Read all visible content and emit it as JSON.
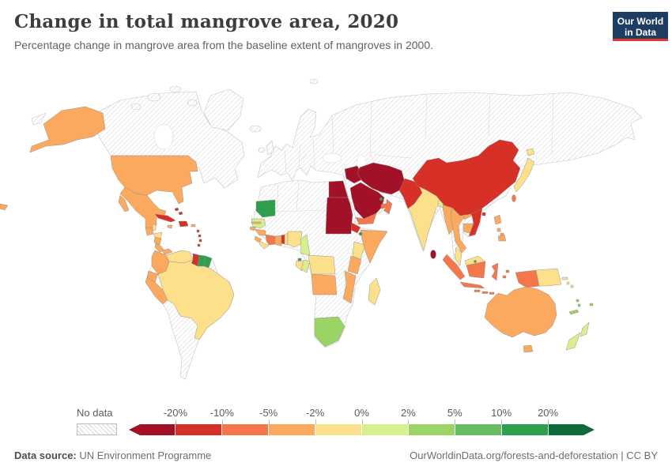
{
  "header": {
    "title": "Change in total mangrove area, 2020",
    "subtitle": "Percentage change in mangrove area from the baseline extent of mangroves in 2000."
  },
  "logo": {
    "line1": "Our World",
    "line2": "in Data",
    "bg_color": "#1d3d63",
    "accent_color": "#e0342c"
  },
  "legend": {
    "nodata_label": "No data",
    "tick_labels": [
      "-20%",
      "-10%",
      "-5%",
      "-2%",
      "0%",
      "2%",
      "5%",
      "10%",
      "20%"
    ],
    "bucket_colors": [
      "#A21127",
      "#D73027",
      "#F4764A",
      "#FBA95F",
      "#FCE08B",
      "#D8EE8F",
      "#9BD364",
      "#66BD63",
      "#2F9E4D",
      "#0C6B39"
    ]
  },
  "footer": {
    "source_label": "Data source:",
    "source_value": "UN Environment Programme",
    "right_text": "OurWorldinData.org/forests-and-deforestation | CC BY"
  },
  "chart_data": {
    "type": "heatmap",
    "subtype": "world-choropleth-map",
    "title": "Change in total mangrove area, 2020",
    "unit": "%",
    "color_scale": {
      "tick_values": [
        -20,
        -10,
        -5,
        -2,
        0,
        2,
        5,
        10,
        20
      ],
      "bucket_colors": [
        "#A21127",
        "#D73027",
        "#F4764A",
        "#FBA95F",
        "#FCE08B",
        "#D8EE8F",
        "#9BD364",
        "#66BD63",
        "#2F9E4D",
        "#0C6B39"
      ],
      "nodata_pattern": "gray-diagonal-hatch"
    },
    "countries": [
      {
        "id": "united-states",
        "name": "United States",
        "bucket": "-5% to -2%",
        "color": "#FBA95F"
      },
      {
        "id": "mexico",
        "name": "Mexico",
        "bucket": "-5% to -2%",
        "color": "#FBA95F"
      },
      {
        "id": "guatemala",
        "name": "Guatemala",
        "bucket": "-5% to -2%",
        "color": "#FBA95F"
      },
      {
        "id": "belize",
        "name": "Belize",
        "bucket": "-2% to 0%",
        "color": "#FCE08B"
      },
      {
        "id": "honduras",
        "name": "Honduras",
        "bucket": "-2% to 0%",
        "color": "#FCE08B"
      },
      {
        "id": "nicaragua",
        "name": "Nicaragua",
        "bucket": "-5% to -2%",
        "color": "#FBA95F"
      },
      {
        "id": "costa-rica",
        "name": "Costa Rica",
        "bucket": "-5% to -2%",
        "color": "#FBA95F"
      },
      {
        "id": "panama",
        "name": "Panama",
        "bucket": "-5% to -2%",
        "color": "#FBA95F"
      },
      {
        "id": "cuba",
        "name": "Cuba",
        "bucket": "-20% to -10%",
        "color": "#D73027"
      },
      {
        "id": "jamaica",
        "name": "Jamaica",
        "bucket": "-5% to -2%",
        "color": "#FBA95F"
      },
      {
        "id": "hispaniola",
        "name": "Haiti / Dominican Republic",
        "bucket": "-20% to -10%",
        "color": "#D73027"
      },
      {
        "id": "puerto-rico",
        "name": "Puerto Rico",
        "bucket": "-5% to -2%",
        "color": "#FBA95F"
      },
      {
        "id": "bahamas",
        "name": "Bahamas",
        "bucket": "-20% to -10%",
        "color": "#D73027"
      },
      {
        "id": "lesser-antilles",
        "name": "Lesser Antilles",
        "bucket": "-20% to -10%",
        "color": "#D73027"
      },
      {
        "id": "colombia",
        "name": "Colombia",
        "bucket": "-5% to -2%",
        "color": "#FBA95F"
      },
      {
        "id": "venezuela",
        "name": "Venezuela",
        "bucket": "-2% to 0%",
        "color": "#FCE08B"
      },
      {
        "id": "guyana",
        "name": "Guyana",
        "bucket": "-20% to -10%",
        "color": "#D73027"
      },
      {
        "id": "suriname",
        "name": "Suriname",
        "bucket": "10% to 20%",
        "color": "#2F9E4D"
      },
      {
        "id": "french-guiana",
        "name": "French Guiana",
        "bucket": "10% to 20%",
        "color": "#2F9E4D"
      },
      {
        "id": "ecuador",
        "name": "Ecuador",
        "bucket": "-5% to -2%",
        "color": "#FBA95F"
      },
      {
        "id": "peru",
        "name": "Peru",
        "bucket": "-5% to -2%",
        "color": "#FBA95F"
      },
      {
        "id": "brazil",
        "name": "Brazil",
        "bucket": "-2% to 0%",
        "color": "#FCE08B"
      },
      {
        "id": "mauritania",
        "name": "Mauritania",
        "bucket": "10% to 20%",
        "color": "#2F9E4D"
      },
      {
        "id": "senegal",
        "name": "Senegal",
        "bucket": "0% to 2%",
        "color": "#D8EE8F"
      },
      {
        "id": "gambia",
        "name": "Gambia",
        "bucket": "-5% to -2%",
        "color": "#FBA95F"
      },
      {
        "id": "guinea-bissau",
        "name": "Guinea-Bissau",
        "bucket": "-5% to -2%",
        "color": "#FBA95F"
      },
      {
        "id": "guinea",
        "name": "Guinea",
        "bucket": "-5% to -2%",
        "color": "#FBA95F"
      },
      {
        "id": "sierra-leone",
        "name": "Sierra Leone",
        "bucket": "-5% to -2%",
        "color": "#FBA95F"
      },
      {
        "id": "liberia",
        "name": "Liberia",
        "bucket": "-2% to 0%",
        "color": "#FCE08B"
      },
      {
        "id": "cote-divoire",
        "name": "Cote d'Ivoire",
        "bucket": "-10% to -5%",
        "color": "#F4764A"
      },
      {
        "id": "ghana",
        "name": "Ghana",
        "bucket": "-5% to -2%",
        "color": "#FBA95F"
      },
      {
        "id": "togo",
        "name": "Togo",
        "bucket": "-20% to -10%",
        "color": "#D73027"
      },
      {
        "id": "benin",
        "name": "Benin",
        "bucket": "-2% to 0%",
        "color": "#FCE08B"
      },
      {
        "id": "nigeria",
        "name": "Nigeria",
        "bucket": "-2% to 0%",
        "color": "#FCE08B"
      },
      {
        "id": "cameroon",
        "name": "Cameroon",
        "bucket": "0% to 2%",
        "color": "#D8EE8F"
      },
      {
        "id": "equatorial-guinea",
        "name": "Equatorial Guinea",
        "bucket": "10% to 20%",
        "color": "#2F9E4D"
      },
      {
        "id": "gabon",
        "name": "Gabon",
        "bucket": "-2% to 0%",
        "color": "#FCE08B"
      },
      {
        "id": "congo",
        "name": "Congo",
        "bucket": "0% to 2%",
        "color": "#D8EE8F"
      },
      {
        "id": "drc",
        "name": "Democratic Republic of Congo",
        "bucket": "-2% to 0%",
        "color": "#FCE08B"
      },
      {
        "id": "angola",
        "name": "Angola",
        "bucket": "-5% to -2%",
        "color": "#FBA95F"
      },
      {
        "id": "kenya",
        "name": "Kenya",
        "bucket": "-2% to 0%",
        "color": "#FCE08B"
      },
      {
        "id": "tanzania",
        "name": "Tanzania",
        "bucket": "-5% to -2%",
        "color": "#FBA95F"
      },
      {
        "id": "somalia",
        "name": "Somalia",
        "bucket": "-5% to -2%",
        "color": "#FBA95F"
      },
      {
        "id": "mozambique",
        "name": "Mozambique",
        "bucket": "-5% to -2%",
        "color": "#FBA95F"
      },
      {
        "id": "madagascar",
        "name": "Madagascar",
        "bucket": "-2% to 0%",
        "color": "#FCE08B"
      },
      {
        "id": "south-africa",
        "name": "South Africa",
        "bucket": "2% to 5%",
        "color": "#9BD364"
      },
      {
        "id": "egypt",
        "name": "Egypt",
        "bucket": "less than -20%",
        "color": "#A21127"
      },
      {
        "id": "sudan",
        "name": "Sudan",
        "bucket": "less than -20%",
        "color": "#A21127"
      },
      {
        "id": "eritrea",
        "name": "Eritrea",
        "bucket": "-20% to -10%",
        "color": "#D73027"
      },
      {
        "id": "djibouti",
        "name": "Djibouti",
        "bucket": "10% to 20%",
        "color": "#2F9E4D"
      },
      {
        "id": "saudi-arabia",
        "name": "Saudi Arabia",
        "bucket": "less than -20%",
        "color": "#A21127"
      },
      {
        "id": "iraq",
        "name": "Iraq",
        "bucket": "less than -20%",
        "color": "#A21127"
      },
      {
        "id": "iran",
        "name": "Iran",
        "bucket": "less than -20%",
        "color": "#A21127"
      },
      {
        "id": "qatar",
        "name": "Qatar",
        "bucket": "10% to 20%",
        "color": "#2F9E4D"
      },
      {
        "id": "uae",
        "name": "United Arab Emirates",
        "bucket": "-10% to -5%",
        "color": "#F4764A"
      },
      {
        "id": "oman",
        "name": "Oman",
        "bucket": "-10% to -5%",
        "color": "#F4764A"
      },
      {
        "id": "yemen",
        "name": "Yemen",
        "bucket": "-10% to -5%",
        "color": "#F4764A"
      },
      {
        "id": "pakistan",
        "name": "Pakistan",
        "bucket": "-20% to -10%",
        "color": "#D73027"
      },
      {
        "id": "india",
        "name": "India",
        "bucket": "-2% to 0%",
        "color": "#FCE08B"
      },
      {
        "id": "bangladesh",
        "name": "Bangladesh",
        "bucket": "0% to 2%",
        "color": "#D8EE8F"
      },
      {
        "id": "sri-lanka",
        "name": "Sri Lanka",
        "bucket": "less than -20%",
        "color": "#A21127"
      },
      {
        "id": "myanmar",
        "name": "Myanmar",
        "bucket": "-5% to -2%",
        "color": "#FBA95F"
      },
      {
        "id": "thailand",
        "name": "Thailand",
        "bucket": "-5% to -2%",
        "color": "#FBA95F"
      },
      {
        "id": "laos",
        "name": "Laos",
        "bucket": "-5% to -2%",
        "color": "#FBA95F"
      },
      {
        "id": "cambodia",
        "name": "Cambodia",
        "bucket": "-5% to -2%",
        "color": "#FBA95F"
      },
      {
        "id": "vietnam",
        "name": "Vietnam",
        "bucket": "-20% to -10%",
        "color": "#D73027"
      },
      {
        "id": "china",
        "name": "China",
        "bucket": "-20% to -10%",
        "color": "#D73027"
      },
      {
        "id": "taiwan",
        "name": "Taiwan",
        "bucket": "-10% to -5%",
        "color": "#F4764A"
      },
      {
        "id": "japan",
        "name": "Japan",
        "bucket": "-2% to 0%",
        "color": "#FCE08B"
      },
      {
        "id": "philippines",
        "name": "Philippines",
        "bucket": "-5% to -2%",
        "color": "#FBA95F"
      },
      {
        "id": "malaysia",
        "name": "Malaysia",
        "bucket": "-2% to 0%",
        "color": "#FCE08B"
      },
      {
        "id": "brunei",
        "name": "Brunei",
        "bucket": "10% to 20%",
        "color": "#2F9E4D"
      },
      {
        "id": "indonesia",
        "name": "Indonesia",
        "bucket": "-10% to -5%",
        "color": "#F4764A"
      },
      {
        "id": "timor-leste",
        "name": "Timor-Leste",
        "bucket": "2% to 5%",
        "color": "#9BD364"
      },
      {
        "id": "papua-new-guinea",
        "name": "Papua New Guinea",
        "bucket": "-2% to 0%",
        "color": "#FCE08B"
      },
      {
        "id": "solomon-islands",
        "name": "Solomon Islands",
        "bucket": "0% to 2%",
        "color": "#D8EE8F"
      },
      {
        "id": "vanuatu",
        "name": "Vanuatu",
        "bucket": "2% to 5%",
        "color": "#9BD364"
      },
      {
        "id": "new-caledonia",
        "name": "New Caledonia",
        "bucket": "2% to 5%",
        "color": "#9BD364"
      },
      {
        "id": "fiji",
        "name": "Fiji",
        "bucket": "2% to 5%",
        "color": "#9BD364"
      },
      {
        "id": "australia",
        "name": "Australia",
        "bucket": "-5% to -2%",
        "color": "#FBA95F"
      },
      {
        "id": "new-zealand",
        "name": "New Zealand",
        "bucket": "0% to 2%",
        "color": "#D8EE8F"
      }
    ]
  }
}
